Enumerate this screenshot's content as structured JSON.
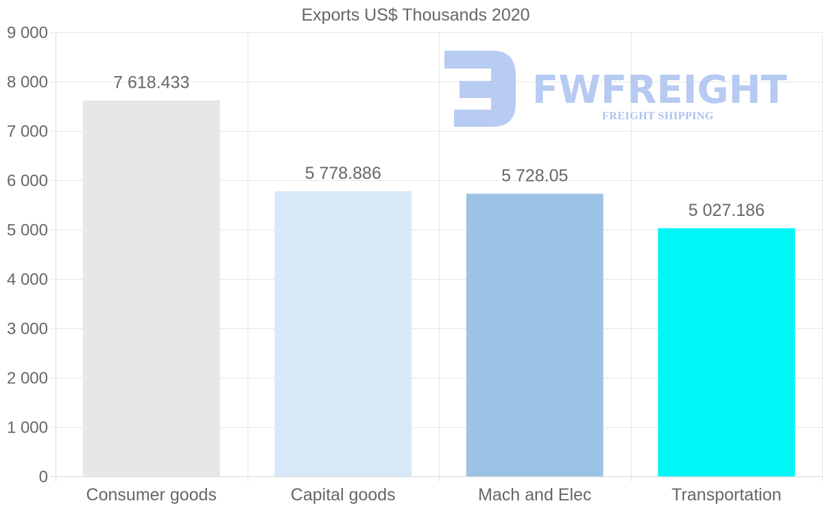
{
  "chart_data": {
    "type": "bar",
    "title": "Exports US$ Thousands 2020",
    "categories": [
      "Consumer goods",
      "Capital goods",
      "Mach and Elec",
      "Transportation"
    ],
    "values": [
      7618.433,
      5778.886,
      5728.05,
      5027.186
    ],
    "value_labels": [
      "7 618.433",
      "5 778.886",
      "5 728.05",
      "5 027.186"
    ],
    "bar_colors": [
      "#e7e7e7",
      "#d8e8f9",
      "#9cc3e6",
      "#00f7f7"
    ],
    "y_ticks": [
      0,
      1000,
      2000,
      3000,
      4000,
      5000,
      6000,
      7000,
      8000,
      9000
    ],
    "y_tick_labels": [
      "0",
      "1 000",
      "2 000",
      "3 000",
      "4 000",
      "5 000",
      "6 000",
      "7 000",
      "8 000",
      "9 000"
    ],
    "ylim": [
      0,
      9000
    ],
    "xlabel": "",
    "ylabel": "",
    "grid": true,
    "legend": "none"
  },
  "watermark": {
    "name": "FWFREIGHT",
    "tagline": "FREIGHT SHIPPING",
    "color": "#b3c8f2"
  }
}
